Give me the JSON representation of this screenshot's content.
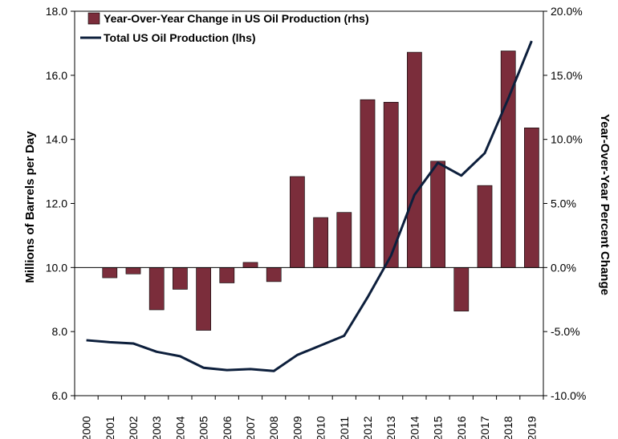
{
  "chart_data": {
    "type": "bar",
    "categories": [
      "2000",
      "2001",
      "2002",
      "2003",
      "2004",
      "2005",
      "2006",
      "2007",
      "2008",
      "2009",
      "2010",
      "2011",
      "2012",
      "2013",
      "2014",
      "2015",
      "2016",
      "2017",
      "2018",
      "2019"
    ],
    "series": [
      {
        "name": "Year-Over-Year Change in US Oil Production (rhs)",
        "type": "bar",
        "axis": "right",
        "color": "#7b2d3b",
        "values": [
          0.0,
          -0.8,
          -0.5,
          -3.3,
          -1.7,
          -4.9,
          -1.2,
          0.4,
          -1.1,
          7.1,
          3.9,
          4.3,
          13.1,
          12.9,
          16.8,
          8.3,
          -3.4,
          6.4,
          16.9,
          10.9
        ]
      },
      {
        "name": "Total US Oil Production (lhs)",
        "type": "line",
        "axis": "left",
        "color": "#0d1f3c",
        "values": [
          7.73,
          7.67,
          7.63,
          7.37,
          7.23,
          6.87,
          6.8,
          6.83,
          6.77,
          7.27,
          7.57,
          7.87,
          9.07,
          10.37,
          12.27,
          13.27,
          12.87,
          13.57,
          15.27,
          17.07
        ]
      }
    ],
    "ylabel": "Millions of Barrels per Day",
    "ylabel_right": "Year-Over-Year Percent Change",
    "ylim": [
      6.0,
      18.0
    ],
    "ylim_right": [
      -10.0,
      20.0
    ],
    "yticks": [
      "6.0",
      "8.0",
      "10.0",
      "12.0",
      "14.0",
      "16.0",
      "18.0"
    ],
    "yticks_right": [
      "-10.0%",
      "-5.0%",
      "0.0%",
      "5.0%",
      "10.0%",
      "15.0%",
      "20.0%"
    ],
    "legend": {
      "placement": "top-left",
      "entries": [
        {
          "label": "Year-Over-Year Change in US Oil Production (rhs)",
          "marker": "bar"
        },
        {
          "label": "Total US Oil Production (lhs)",
          "marker": "line"
        }
      ]
    },
    "grid": false
  }
}
